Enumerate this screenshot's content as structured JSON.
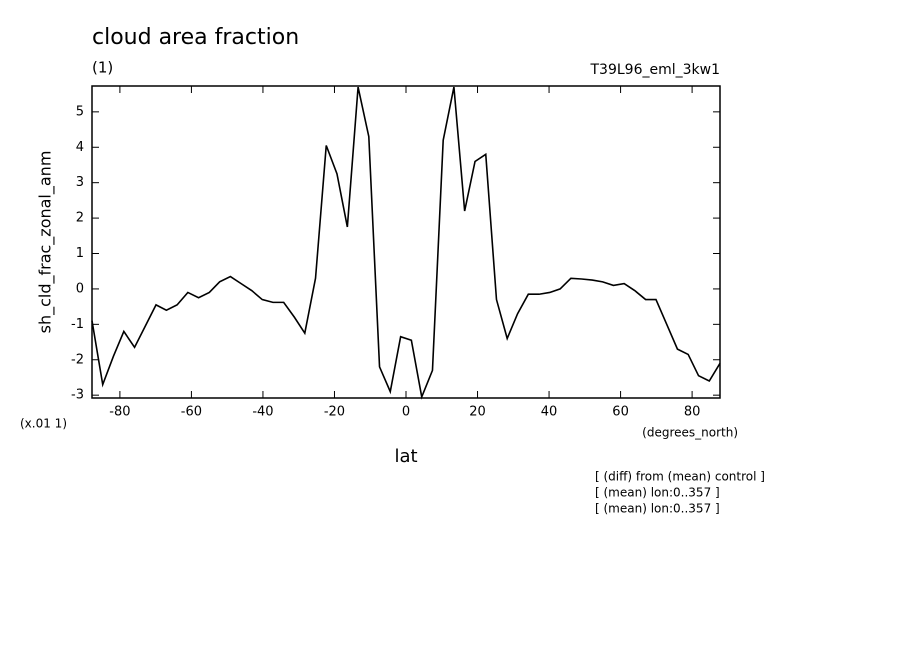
{
  "chart_data": {
    "type": "line",
    "title": "cloud area fraction",
    "subtitle": "(1)",
    "run_label": "T39L96_eml_3kw1",
    "y_label": "sh_cld_frac_zonal_anm",
    "y_scale_label": "(x.01 1)",
    "x_units_label": "(degrees_north)",
    "x_label": "lat",
    "notes": [
      "[ (diff) from (mean) control ]",
      "[ (mean) lon:0..357 ]",
      "[ (mean) lon:0..357 ]"
    ],
    "xlim": [
      -87.8,
      87.8
    ],
    "ylim": [
      -3.08,
      5.73
    ],
    "xticks": [
      -80,
      -60,
      -40,
      -20,
      0,
      20,
      40,
      60,
      80
    ],
    "yticks": [
      -3,
      -2,
      -1,
      0,
      1,
      2,
      3,
      4,
      5
    ],
    "color": "#000000",
    "x": [
      -87.8,
      -84.8,
      -81.8,
      -78.9,
      -75.9,
      -72.9,
      -69.9,
      -67.0,
      -64.0,
      -61.0,
      -58.0,
      -55.0,
      -52.1,
      -49.1,
      -46.1,
      -43.1,
      -40.2,
      -37.2,
      -34.2,
      -31.2,
      -28.3,
      -25.3,
      -22.3,
      -19.3,
      -16.4,
      -13.4,
      -10.4,
      -7.4,
      -4.4,
      -1.5,
      1.5,
      4.4,
      7.4,
      10.4,
      13.4,
      16.4,
      19.3,
      22.3,
      25.3,
      28.3,
      31.2,
      34.2,
      37.2,
      40.2,
      43.1,
      46.1,
      49.1,
      52.1,
      55.0,
      58.0,
      61.0,
      64.0,
      67.0,
      69.9,
      72.9,
      75.9,
      78.9,
      81.8,
      84.8,
      87.8
    ],
    "values": [
      -0.9,
      -2.7,
      -1.9,
      -1.2,
      -1.65,
      -1.05,
      -0.45,
      -0.6,
      -0.45,
      -0.1,
      -0.25,
      -0.1,
      0.2,
      0.35,
      0.15,
      -0.05,
      -0.3,
      -0.38,
      -0.38,
      -0.8,
      -1.25,
      0.3,
      4.05,
      3.25,
      1.75,
      5.7,
      4.3,
      -2.2,
      -2.9,
      -1.35,
      -1.45,
      -3.05,
      -2.3,
      4.2,
      5.7,
      2.2,
      3.6,
      3.8,
      -0.3,
      -1.4,
      -0.7,
      -0.15,
      -0.15,
      -0.1,
      0.0,
      0.3,
      0.28,
      0.25,
      0.2,
      0.1,
      0.15,
      -0.05,
      -0.3,
      -0.3,
      -1.0,
      -1.7,
      -1.85,
      -2.45,
      -2.6,
      -2.1
    ]
  }
}
